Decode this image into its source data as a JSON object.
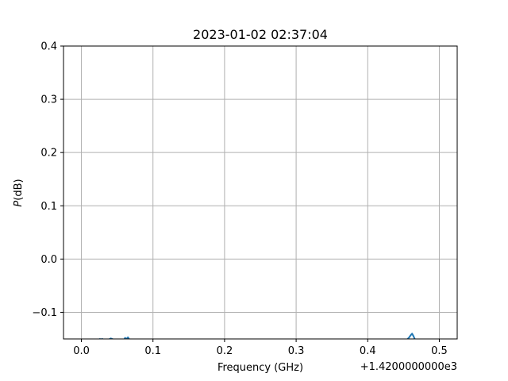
{
  "chart_data": {
    "type": "line",
    "title": "2023-01-02 02:37:04",
    "xlabel": "Frequency (GHz)",
    "ylabel_italic": "P",
    "ylabel_rest": "(dB)",
    "x_offset_label": "+1.4200000000e3",
    "xlim": [
      -0.025,
      0.525
    ],
    "ylim": [
      -0.15,
      0.4
    ],
    "xticks": [
      0.0,
      0.1,
      0.2,
      0.3,
      0.4,
      0.5
    ],
    "xtick_labels": [
      "0.0",
      "0.1",
      "0.2",
      "0.3",
      "0.4",
      "0.5"
    ],
    "yticks": [
      -0.1,
      0.0,
      0.1,
      0.2,
      0.3,
      0.4
    ],
    "ytick_labels": [
      "−0.1",
      "0.0",
      "0.1",
      "0.2",
      "0.3",
      "0.4"
    ],
    "grid": true,
    "series": [
      {
        "color": "#1f77b4",
        "x": [
          0.022,
          0.024,
          0.026,
          0.027,
          0.029,
          0.031,
          0.038,
          0.04,
          0.041,
          0.043,
          0.045,
          0.06,
          0.061,
          0.0625,
          0.063,
          0.064,
          0.065,
          0.066,
          0.067,
          0.455,
          0.458,
          0.46,
          0.462,
          0.464,
          0.466
        ],
        "y": [
          -0.151,
          -0.151,
          -0.15,
          -0.151,
          -0.15,
          -0.151,
          -0.151,
          -0.15,
          -0.149,
          -0.15,
          -0.151,
          -0.151,
          -0.148,
          -0.15,
          -0.149,
          -0.151,
          -0.147,
          -0.149,
          -0.151,
          -0.151,
          -0.147,
          -0.143,
          -0.14,
          -0.145,
          -0.151
        ]
      }
    ]
  }
}
